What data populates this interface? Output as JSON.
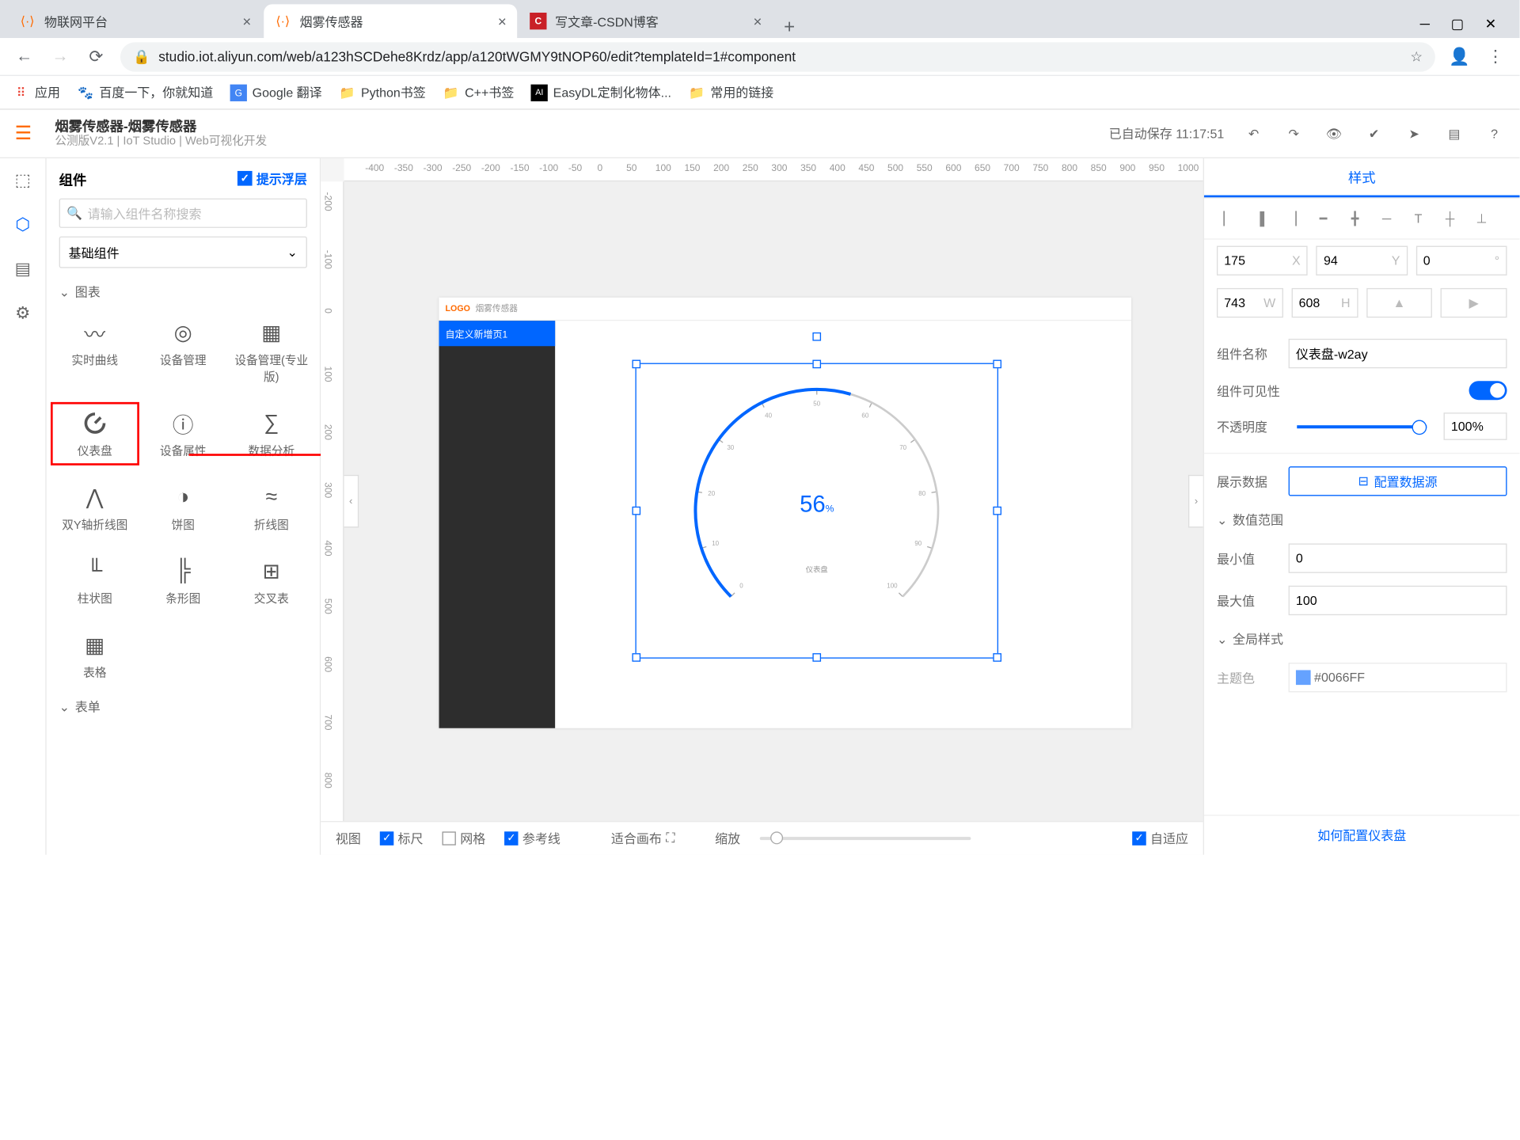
{
  "browser": {
    "tabs": [
      {
        "title": "物联网平台",
        "favColor": "#ff6a00",
        "active": false
      },
      {
        "title": "烟雾传感器",
        "favColor": "#ff6a00",
        "active": true
      },
      {
        "title": "写文章-CSDN博客",
        "favColor": "#c92027",
        "active": false
      }
    ],
    "url": "studio.iot.aliyun.com/web/a123hSCDehe8Krdz/app/a120tWGMY9tNOP60/edit?templateId=1#component",
    "bookmarks": [
      {
        "label": "应用",
        "color": "#4285f4"
      },
      {
        "label": "百度一下，你就知道",
        "color": "#2b73de"
      },
      {
        "label": "Google 翻译",
        "color": "#4285f4"
      },
      {
        "label": "Python书签",
        "color": "#fbb829"
      },
      {
        "label": "C++书签",
        "color": "#fbb829"
      },
      {
        "label": "EasyDL定制化物体...",
        "color": "#000"
      },
      {
        "label": "常用的链接",
        "color": "#fbb829"
      }
    ]
  },
  "header": {
    "title": "烟雾传感器-烟雾传感器",
    "subtitle": "公测版V2.1 | IoT Studio | Web可视化开发",
    "autosave": "已自动保存 11:17:51"
  },
  "comp": {
    "title": "组件",
    "hintToggle": "提示浮层",
    "searchPlaceholder": "请输入组件名称搜索",
    "dropdown": "基础组件",
    "sections": {
      "charts": "图表",
      "forms": "表单"
    },
    "items": [
      {
        "icon": "〰",
        "label": "实时曲线"
      },
      {
        "icon": "◎",
        "label": "设备管理"
      },
      {
        "icon": "▦",
        "label": "设备管理(专业版)"
      },
      {
        "icon": "◐",
        "label": "仪表盘",
        "sel": true
      },
      {
        "icon": "ⓘ",
        "label": "设备属性"
      },
      {
        "icon": "∑",
        "label": "数据分析"
      },
      {
        "icon": "⋀",
        "label": "双Y轴折线图"
      },
      {
        "icon": "◑",
        "label": "饼图"
      },
      {
        "icon": "≈",
        "label": "折线图"
      },
      {
        "icon": "╙",
        "label": "柱状图"
      },
      {
        "icon": "╠",
        "label": "条形图"
      },
      {
        "icon": "⊞",
        "label": "交叉表"
      },
      {
        "icon": "▦",
        "label": "表格"
      }
    ]
  },
  "canvas": {
    "logo": "LOGO",
    "logoText": "烟雾传感器",
    "navItem": "自定义新增页1",
    "gauge": {
      "type": "gauge",
      "value": 56,
      "valueUnit": "%",
      "label": "仪表盘",
      "startAngle": 225,
      "endAngle": -45,
      "min": 0,
      "max": 100,
      "ticks": [
        0,
        10,
        20,
        30,
        40,
        50,
        60,
        70,
        80,
        90,
        100
      ],
      "progressColor": "#0066ff",
      "trackColor": "#cccccc",
      "strokeWidth": 2,
      "tickColor": "#aaaaaa",
      "tickFontSize": 6,
      "valueColor": "#0066ff",
      "valueFontSize": 22,
      "selectionColor": "#0066ff"
    },
    "foot": {
      "view": "视图",
      "ruler": "标尺",
      "grid": "网格",
      "guide": "参考线",
      "fit": "适合画布",
      "zoom": "缩放",
      "adaptive": "自适应"
    }
  },
  "props": {
    "tab": "样式",
    "pos": {
      "x": "175",
      "xL": "X",
      "y": "94",
      "yL": "Y",
      "r": "0",
      "rL": "°",
      "w": "743",
      "wL": "W",
      "h": "608",
      "hL": "H"
    },
    "nameLabel": "组件名称",
    "name": "仪表盘-w2ay",
    "visibleLabel": "组件可见性",
    "opacityLabel": "不透明度",
    "opacity": "100%",
    "dataLabel": "展示数据",
    "dataBtn": "配置数据源",
    "rangeSection": "数值范围",
    "minLabel": "最小值",
    "min": "0",
    "maxLabel": "最大值",
    "max": "100",
    "styleSection": "全局样式",
    "themeLabel": "主题色",
    "themeColor": "#0066FF",
    "helpLink": "如何配置仪表盘"
  }
}
